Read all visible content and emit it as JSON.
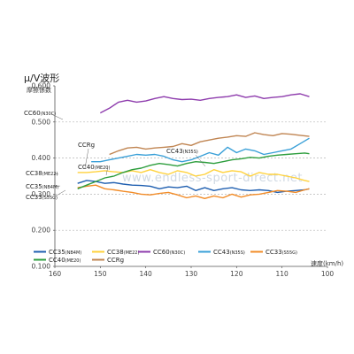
{
  "chart_data": {
    "type": "line",
    "title": "μ/V波形",
    "ylabel": "摩擦係数",
    "xlabel": "速度(km/h)",
    "watermark": "www.endless-sport-direct.net",
    "xlim": [
      160,
      100
    ],
    "ylim": [
      0.1,
      0.6
    ],
    "x_ticks": [
      "160",
      "150",
      "140",
      "130",
      "120",
      "110",
      "100"
    ],
    "y_ticks": [
      "0.600",
      "0.500",
      "0.400",
      "0.300",
      "0.200",
      "0.100"
    ],
    "grid": "dashed horizontal at 0.200, 0.300, 0.400, 0.500",
    "legend_placement": "bottom",
    "series": [
      {
        "name": "CC35",
        "sub": "(NB4M)",
        "color": "#1f5fb0",
        "x": [
          155,
          153,
          151,
          149,
          147,
          145,
          143,
          141,
          139,
          137,
          135,
          133,
          131,
          129,
          127,
          125,
          123,
          121,
          119,
          117,
          115,
          113,
          111,
          109,
          107,
          105,
          104
        ],
        "y": [
          0.33,
          0.338,
          0.335,
          0.33,
          0.332,
          0.328,
          0.325,
          0.324,
          0.322,
          0.315,
          0.32,
          0.318,
          0.322,
          0.31,
          0.318,
          0.31,
          0.315,
          0.318,
          0.312,
          0.31,
          0.312,
          0.31,
          0.305,
          0.308,
          0.31,
          0.312,
          0.315
        ]
      },
      {
        "name": "CC38",
        "sub": "(ME22)",
        "color": "#ffd23c",
        "x": [
          155,
          153,
          151,
          149,
          147,
          145,
          143,
          141,
          139,
          137,
          135,
          133,
          131,
          129,
          127,
          125,
          123,
          121,
          119,
          117,
          115,
          113,
          111,
          109,
          107,
          105,
          104
        ],
        "y": [
          0.36,
          0.36,
          0.362,
          0.365,
          0.362,
          0.36,
          0.365,
          0.36,
          0.368,
          0.36,
          0.355,
          0.365,
          0.36,
          0.35,
          0.355,
          0.368,
          0.36,
          0.365,
          0.362,
          0.35,
          0.36,
          0.355,
          0.355,
          0.35,
          0.345,
          0.338,
          0.335
        ]
      },
      {
        "name": "CC60",
        "sub": "(N30C)",
        "color": "#8e3cad",
        "x": [
          150,
          148,
          146,
          144,
          142,
          140,
          138,
          136,
          134,
          132,
          130,
          128,
          126,
          124,
          122,
          120,
          118,
          116,
          114,
          112,
          110,
          108,
          106,
          104
        ],
        "y": [
          0.525,
          0.538,
          0.555,
          0.56,
          0.555,
          0.558,
          0.565,
          0.57,
          0.565,
          0.562,
          0.563,
          0.56,
          0.565,
          0.568,
          0.57,
          0.575,
          0.568,
          0.572,
          0.565,
          0.568,
          0.57,
          0.575,
          0.578,
          0.57
        ]
      },
      {
        "name": "CC43",
        "sub": "(N35S)",
        "color": "#3aa0d8",
        "x": [
          152,
          150,
          148,
          146,
          144,
          142,
          140,
          138,
          136,
          134,
          132,
          130,
          128,
          126,
          124,
          122,
          120,
          118,
          116,
          114,
          112,
          110,
          108,
          106,
          104
        ],
        "y": [
          0.39,
          0.39,
          0.395,
          0.4,
          0.405,
          0.41,
          0.408,
          0.41,
          0.405,
          0.395,
          0.39,
          0.395,
          0.405,
          0.415,
          0.408,
          0.43,
          0.415,
          0.425,
          0.42,
          0.41,
          0.415,
          0.42,
          0.425,
          0.44,
          0.455
        ]
      },
      {
        "name": "CC33",
        "sub": "(S55G)",
        "color": "#f28c28",
        "x": [
          155,
          153,
          151,
          149,
          147,
          145,
          143,
          141,
          139,
          137,
          135,
          133,
          131,
          129,
          127,
          125,
          123,
          121,
          119,
          117,
          115,
          113,
          111,
          109,
          107,
          105,
          104
        ],
        "y": [
          0.318,
          0.322,
          0.325,
          0.315,
          0.312,
          0.308,
          0.305,
          0.3,
          0.298,
          0.302,
          0.305,
          0.298,
          0.29,
          0.295,
          0.288,
          0.295,
          0.29,
          0.3,
          0.292,
          0.298,
          0.3,
          0.305,
          0.31,
          0.308,
          0.305,
          0.312,
          0.315
        ]
      },
      {
        "name": "CC40",
        "sub": "(ME20)",
        "color": "#2e9e3e",
        "x": [
          155,
          153,
          151,
          149,
          147,
          145,
          143,
          141,
          139,
          137,
          135,
          133,
          131,
          129,
          127,
          125,
          123,
          121,
          119,
          117,
          115,
          113,
          111,
          109,
          107,
          105,
          104
        ],
        "y": [
          0.315,
          0.325,
          0.335,
          0.345,
          0.35,
          0.36,
          0.368,
          0.372,
          0.38,
          0.385,
          0.382,
          0.378,
          0.385,
          0.39,
          0.388,
          0.385,
          0.39,
          0.395,
          0.398,
          0.402,
          0.4,
          0.405,
          0.408,
          0.41,
          0.412,
          0.414,
          0.412
        ]
      },
      {
        "name": "CCRg",
        "sub": "",
        "color": "#c08552",
        "x": [
          148,
          146,
          144,
          142,
          140,
          138,
          136,
          134,
          132,
          130,
          128,
          126,
          124,
          122,
          120,
          118,
          116,
          114,
          112,
          110,
          108,
          106,
          104
        ],
        "y": [
          0.41,
          0.42,
          0.428,
          0.43,
          0.425,
          0.428,
          0.43,
          0.432,
          0.44,
          0.435,
          0.445,
          0.45,
          0.455,
          0.458,
          0.462,
          0.46,
          0.47,
          0.465,
          0.462,
          0.468,
          0.466,
          0.463,
          0.46
        ]
      }
    ],
    "annotations": [
      {
        "name": "CC60",
        "sub": "(N30C)"
      },
      {
        "name": "CCRg",
        "sub": ""
      },
      {
        "name": "CC43",
        "sub": "(N35S)"
      },
      {
        "name": "CC38",
        "sub": "(ME22)"
      },
      {
        "name": "CC40",
        "sub": "(ME20)"
      },
      {
        "name": "CC35",
        "sub": "(NB4M)"
      },
      {
        "name": "CC33",
        "sub": "(S55G)"
      }
    ]
  }
}
